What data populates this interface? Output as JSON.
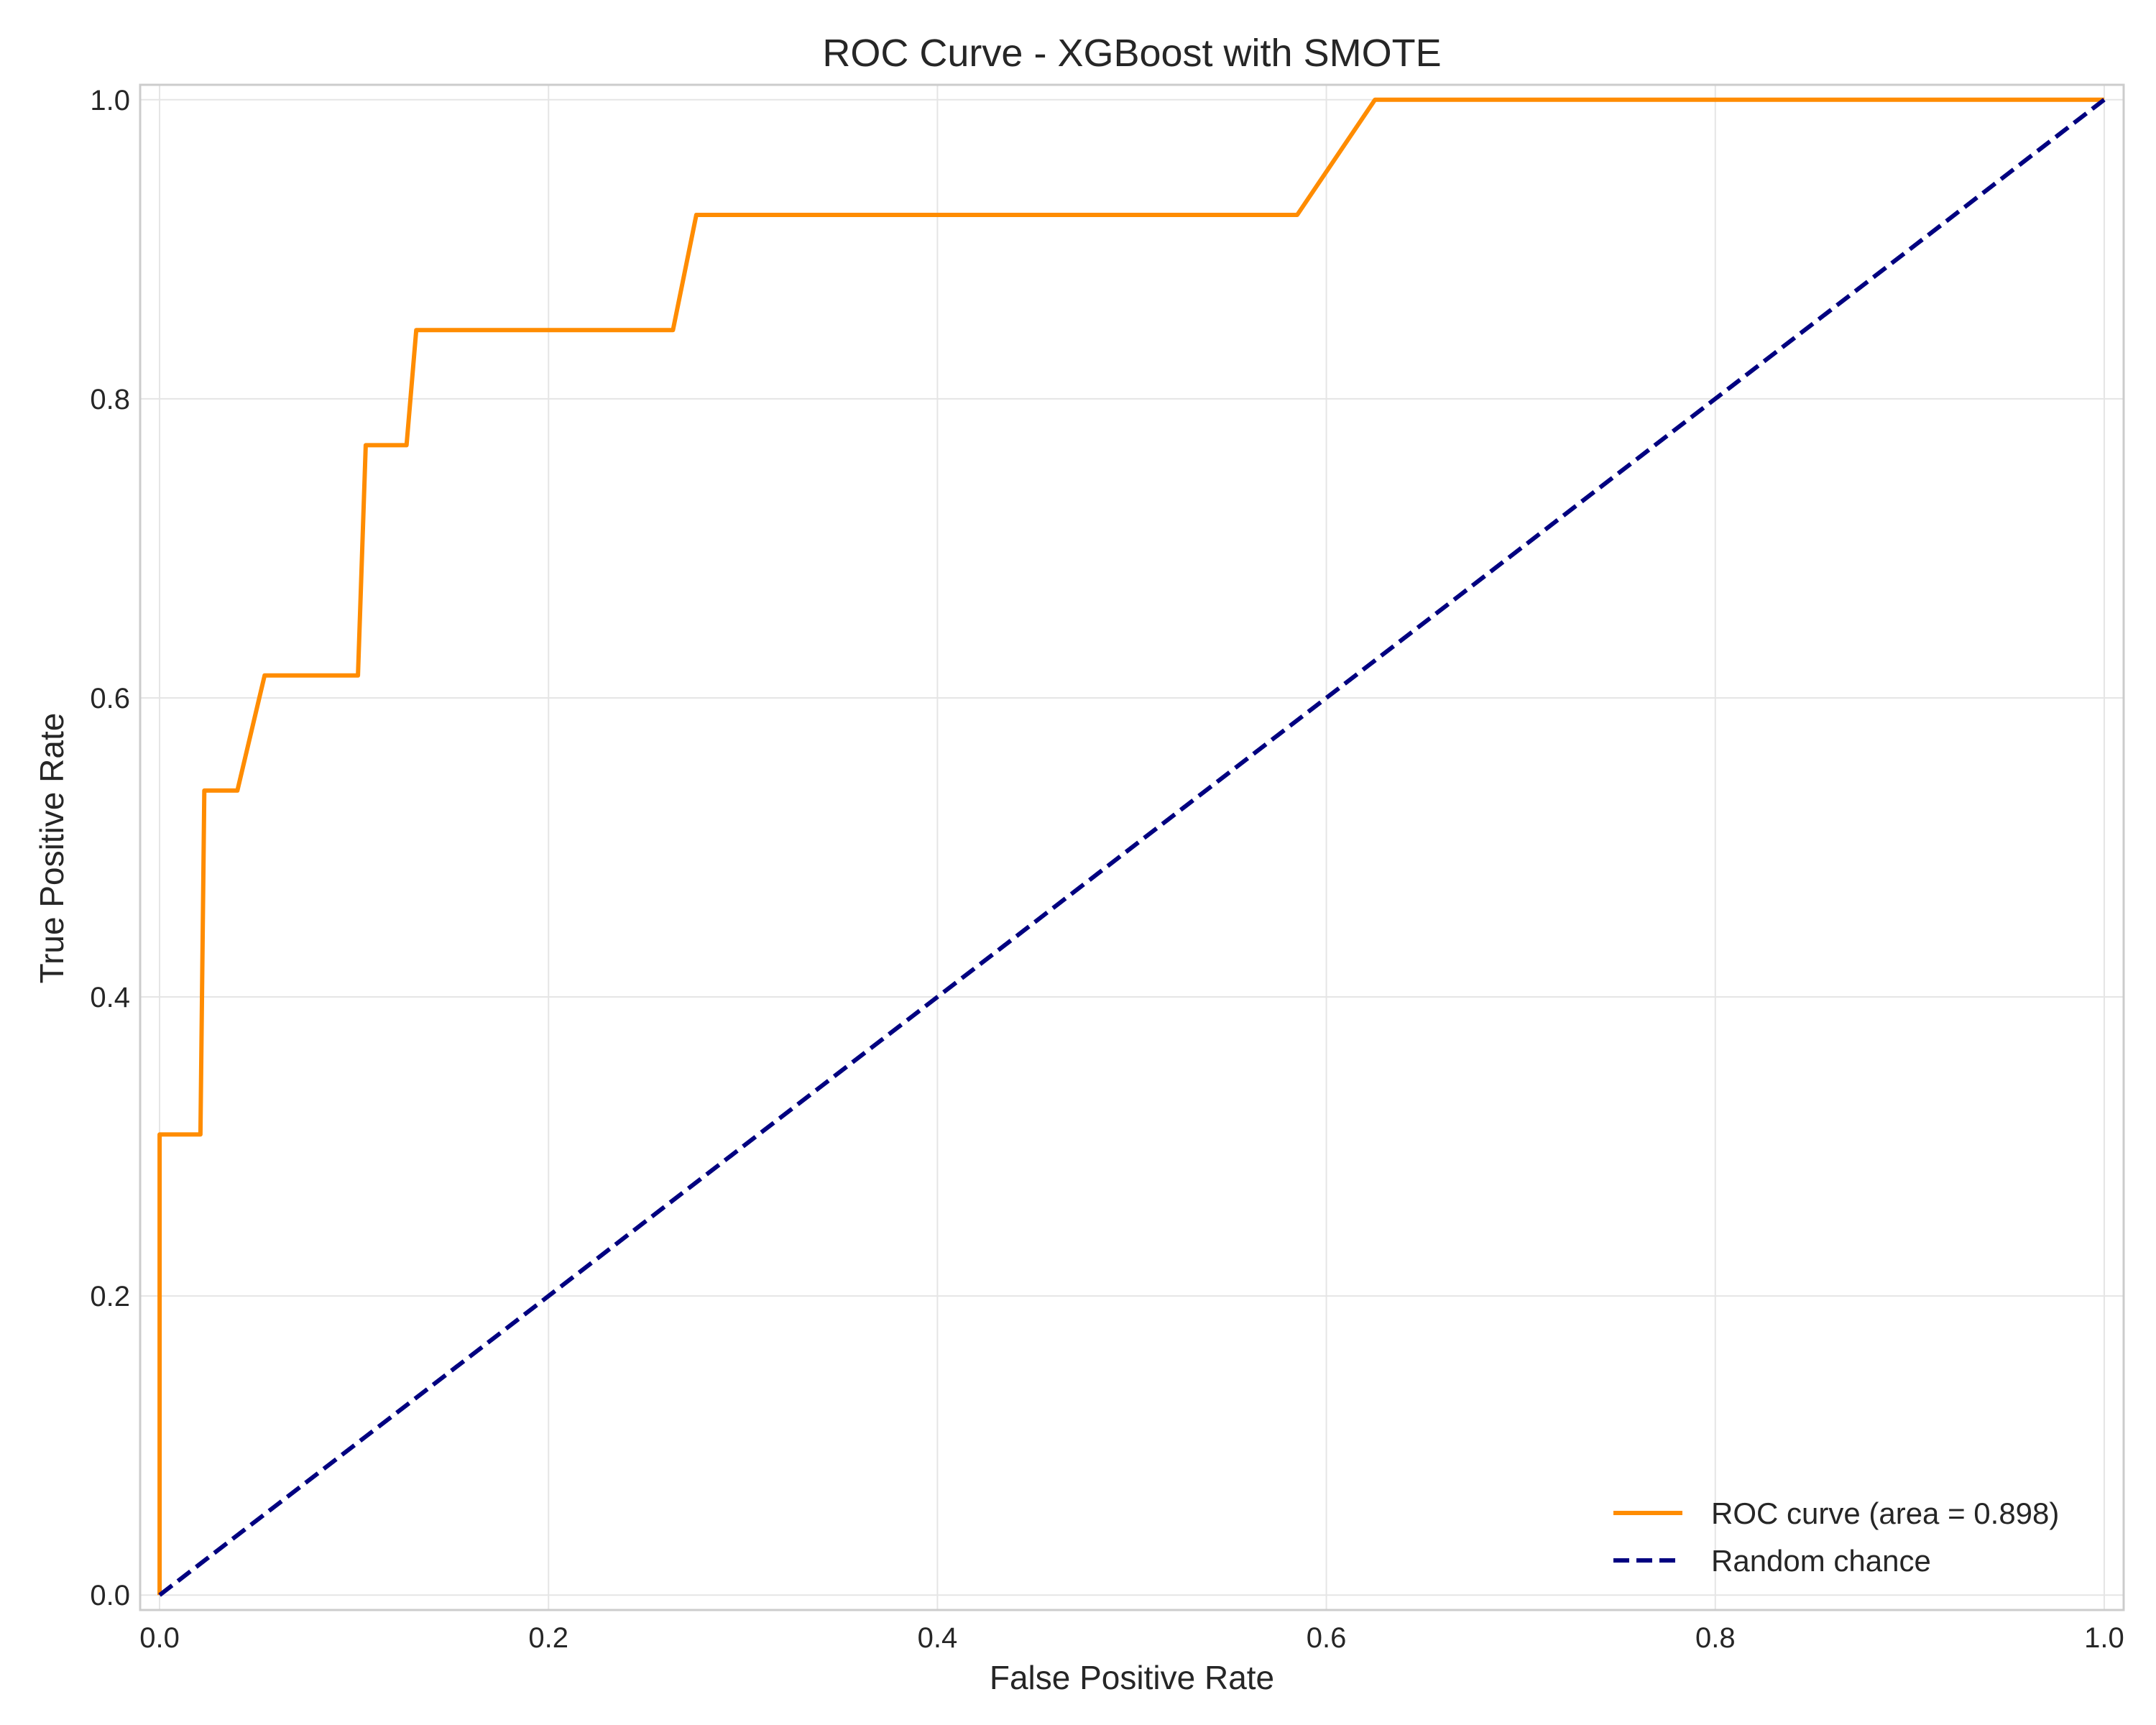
{
  "chart_data": {
    "type": "line",
    "title": "ROC Curve - XGBoost with SMOTE",
    "xlabel": "False Positive Rate",
    "ylabel": "True Positive Rate",
    "xlim": [
      -0.01,
      1.01
    ],
    "ylim": [
      -0.01,
      1.01
    ],
    "x_ticks": [
      0.0,
      0.2,
      0.4,
      0.6,
      0.8,
      1.0
    ],
    "x_tick_labels": [
      "0.0",
      "0.2",
      "0.4",
      "0.6",
      "0.8",
      "1.0"
    ],
    "y_ticks": [
      0.0,
      0.2,
      0.4,
      0.6,
      0.8,
      1.0
    ],
    "y_tick_labels": [
      "0.0",
      "0.2",
      "0.4",
      "0.6",
      "0.8",
      "1.0"
    ],
    "grid": true,
    "legend_position": "lower-right",
    "series": [
      {
        "name": "ROC curve (area = 0.898)",
        "color": "#ff8c00",
        "style": "solid",
        "x": [
          0.0,
          0.0,
          0.021,
          0.023,
          0.04,
          0.054,
          0.102,
          0.106,
          0.127,
          0.132,
          0.264,
          0.276,
          0.585,
          0.625,
          1.0
        ],
        "y": [
          0.0,
          0.308,
          0.308,
          0.538,
          0.538,
          0.615,
          0.615,
          0.769,
          0.769,
          0.846,
          0.846,
          0.923,
          0.923,
          1.0,
          1.0
        ]
      },
      {
        "name": "Random chance",
        "color": "#000080",
        "style": "dashed",
        "x": [
          0.0,
          1.0
        ],
        "y": [
          0.0,
          1.0
        ]
      }
    ]
  }
}
